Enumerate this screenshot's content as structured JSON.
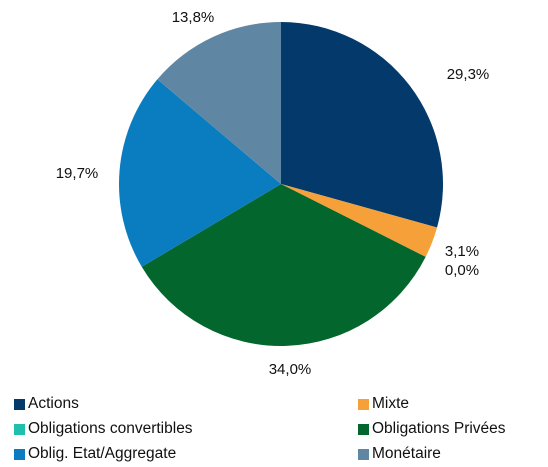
{
  "chart_data": {
    "type": "pie",
    "title": "",
    "slices": [
      {
        "name": "Actions",
        "value": 29.3,
        "label": "29,3%",
        "color": "#033a6b"
      },
      {
        "name": "Mixte",
        "value": 3.1,
        "label": "3,1%",
        "color": "#f6a03a"
      },
      {
        "name": "Obligations convertibles",
        "value": 0.0,
        "label": "0,0%",
        "color": "#1fbfae"
      },
      {
        "name": "Obligations Privées",
        "value": 34.0,
        "label": "34,0%",
        "color": "#03662c"
      },
      {
        "name": "Oblig. Etat/Aggregate",
        "value": 19.7,
        "label": "19,7%",
        "color": "#0a7dc1"
      },
      {
        "name": "Monétaire",
        "value": 13.8,
        "label": "13,8%",
        "color": "#5f87a3"
      }
    ],
    "start_angle": "12 o'clock",
    "direction": "clockwise",
    "legend_position": "bottom"
  },
  "legend": {
    "items": [
      {
        "label": "Actions",
        "color": "#033a6b"
      },
      {
        "label": "Mixte",
        "color": "#f6a03a"
      },
      {
        "label": "Obligations convertibles",
        "color": "#1fbfae"
      },
      {
        "label": "Obligations Privées",
        "color": "#03662c"
      },
      {
        "label": "Oblig. Etat/Aggregate",
        "color": "#0a7dc1"
      },
      {
        "label": "Monétaire",
        "color": "#5f87a3"
      }
    ]
  }
}
